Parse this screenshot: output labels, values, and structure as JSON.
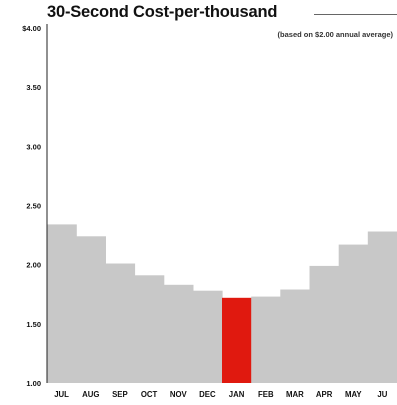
{
  "chart_data": {
    "type": "bar",
    "title": "30-Second Cost-per-thousand",
    "subtitle": "(based on $2.00 annual average)",
    "xlabel": "",
    "ylabel": "",
    "ylim": [
      1.0,
      4.0
    ],
    "y_tick_values": [
      1.0,
      1.5,
      2.0,
      2.5,
      3.0,
      3.5,
      4.0
    ],
    "y_tick_labels": [
      "1.00",
      "1.50",
      "2.00",
      "2.50",
      "3.00",
      "3.50",
      "$4.00"
    ],
    "categories": [
      "JUL",
      "AUG",
      "SEP",
      "OCT",
      "NOV",
      "DEC",
      "JAN",
      "FEB",
      "MAR",
      "APR",
      "MAY",
      "JU"
    ],
    "values": [
      2.34,
      2.24,
      2.01,
      1.91,
      1.83,
      1.78,
      1.72,
      1.73,
      1.79,
      1.99,
      2.17,
      2.28
    ],
    "highlighted_category": "JAN",
    "colors": {
      "bar": "#c8c8c8",
      "highlight": "#e0190f",
      "axis": "#222222",
      "text": "#111111"
    },
    "grid": false,
    "legend": "none"
  }
}
